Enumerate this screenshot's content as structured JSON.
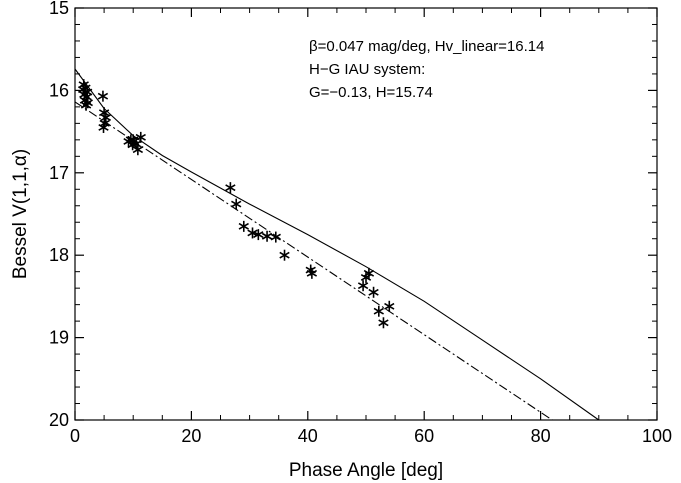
{
  "chart_data": {
    "type": "scatter",
    "xlabel": "Phase Angle [deg]",
    "ylabel": "Bessel V(1,1,α)",
    "xlim": [
      0,
      100
    ],
    "ylim": [
      20,
      15
    ],
    "y_inverted": true,
    "x_ticks": [
      0,
      20,
      40,
      60,
      80,
      100
    ],
    "y_ticks": [
      15,
      16,
      17,
      18,
      19,
      20
    ],
    "x_tick_labels": [
      "0",
      "20",
      "40",
      "60",
      "80",
      "100"
    ],
    "y_tick_labels": [
      "15",
      "16",
      "17",
      "18",
      "19",
      "20"
    ],
    "annotations": [
      "β=0.047 mag/deg, Hv_linear=16.14",
      "H−G IAU system:",
      "G=−0.13, H=15.74"
    ],
    "grid": false,
    "series": [
      {
        "marker": "asterisk",
        "x": [
          1.5,
          1.8,
          2.1,
          1.6,
          2.0,
          1.7,
          2.2,
          1.9,
          1.4,
          4.8,
          5.0,
          5.3,
          5.1,
          4.9,
          9.2,
          9.6,
          10.0,
          10.5,
          10.8,
          11.3,
          9.9,
          26.7,
          27.7,
          29.0,
          30.5,
          31.5,
          33.0,
          34.5,
          36.0,
          40.5,
          40.7,
          49.5,
          50.0,
          50.5,
          51.3,
          52.2,
          53.0,
          54.0
        ],
        "y": [
          15.93,
          15.97,
          16.02,
          16.05,
          16.08,
          16.12,
          16.15,
          16.18,
          15.99,
          16.07,
          16.27,
          16.33,
          16.4,
          16.45,
          16.62,
          16.6,
          16.6,
          16.65,
          16.72,
          16.57,
          16.66,
          17.18,
          17.38,
          17.65,
          17.73,
          17.75,
          17.77,
          17.78,
          18.0,
          18.18,
          18.22,
          18.37,
          18.27,
          18.22,
          18.45,
          18.68,
          18.82,
          18.62
        ]
      }
    ],
    "fit_curves": [
      {
        "style": "solid",
        "x": [
          0,
          5,
          10,
          15,
          20,
          30,
          40,
          50,
          60,
          70,
          80,
          90
        ],
        "y": [
          15.74,
          16.22,
          16.55,
          16.79,
          16.99,
          17.38,
          17.75,
          18.14,
          18.56,
          19.03,
          19.5,
          20.0
        ]
      },
      {
        "style": "dash-dot",
        "x": [
          0,
          82
        ],
        "y": [
          16.14,
          20.0
        ]
      }
    ]
  }
}
